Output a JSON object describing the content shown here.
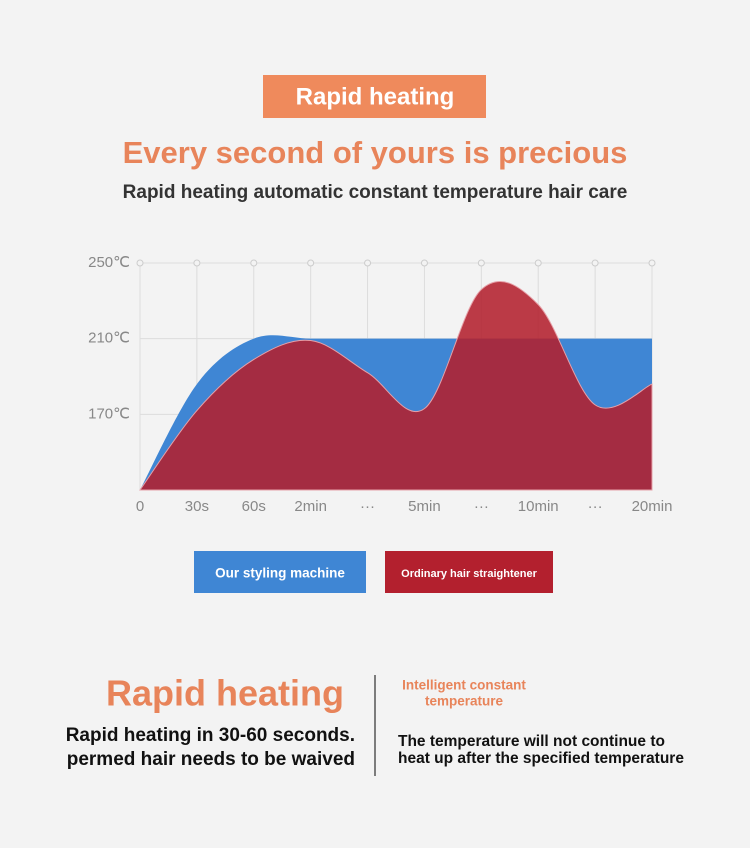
{
  "header": {
    "badge": "Rapid heating",
    "title": "Every second of yours is precious",
    "subtitle": "Rapid heating automatic constant temperature hair care"
  },
  "chart_data": {
    "type": "area",
    "categories": [
      "0",
      "30s",
      "60s",
      "2min",
      "···",
      "5min",
      "···",
      "10min",
      "···",
      "20min"
    ],
    "series": [
      {
        "name": "Our styling machine",
        "color": "#3f86d4",
        "values": [
          130,
          186,
          210,
          210,
          210,
          210,
          210,
          210,
          210,
          210
        ]
      },
      {
        "name": "Ordinary hair straightener",
        "color": "#b3202e",
        "values": [
          130,
          172,
          199,
          209,
          192,
          173,
          236,
          228,
          175,
          186
        ]
      }
    ],
    "ylim": [
      130,
      250
    ],
    "yticks": [
      {
        "value": 170,
        "label": "170℃"
      },
      {
        "value": 210,
        "label": "210℃"
      },
      {
        "value": 250,
        "label": "250℃"
      }
    ],
    "grid": true
  },
  "footer": {
    "left_title": "Rapid heating",
    "left_lines": [
      "Rapid heating in 30-60 seconds.",
      "permed hair needs to be waived"
    ],
    "right_title": [
      "Intelligent constant",
      "temperature"
    ],
    "right_lines": [
      "The temperature will not continue to",
      "heat up after the specified temperature"
    ]
  }
}
